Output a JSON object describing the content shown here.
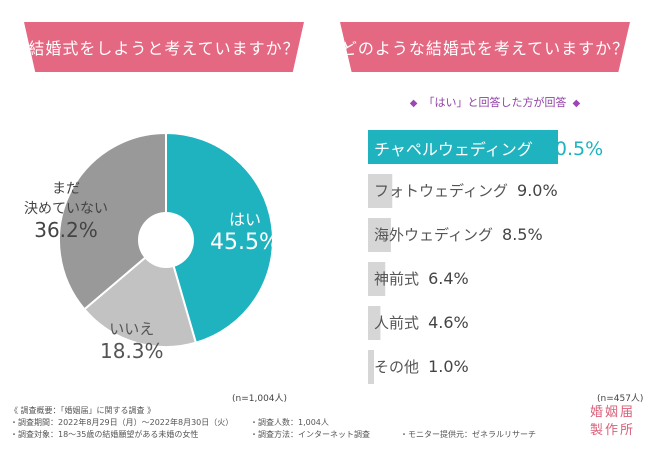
{
  "left_title": "結婚式をしようと考えていますか？",
  "right_title": "どのような結婚式を考えていますか？",
  "right_subtitle": "「はい」と回答した方が回答",
  "subtitle_diamond": "◆",
  "left_n": "(n=1,004人)",
  "right_n": "(n=457人)",
  "chart_data": [
    {
      "type": "pie",
      "categories": [
        "はい",
        "いいえ",
        "まだ決めていない"
      ],
      "values": [
        45.5,
        18.3,
        36.2
      ],
      "labels": {
        "yes": {
          "text": "はい",
          "value": "45.5%"
        },
        "no": {
          "text": "いいえ",
          "value": "18.3%"
        },
        "undecided": {
          "line1": "まだ",
          "line2": "決めていない",
          "value": "36.2%"
        }
      }
    },
    {
      "type": "bar",
      "categories": [
        "チャペルウェディング",
        "フォトウェディング",
        "海外ウェディング",
        "神前式",
        "人前式",
        "その他"
      ],
      "values": [
        70.5,
        9.0,
        8.5,
        6.4,
        4.6,
        1.0
      ],
      "value_labels": [
        "70.5%",
        "9.0%",
        "8.5%",
        "6.4%",
        "4.6%",
        "1.0%"
      ],
      "orientation": "horizontal"
    }
  ],
  "colors": {
    "pink": "#e46882",
    "teal": "#1eb3bf",
    "pie_teal": "#1eb3bf",
    "pie_light": "#c2c2c2",
    "pie_gray": "#999999",
    "bar_gray": "#d6d6d6",
    "purple": "#8f3fa5"
  },
  "footer": {
    "line1": "《 調査概要：「婚姻届」に関する調査 》",
    "line2": "・調査期間：2022年8月29日（月）〜2022年8月30日（火）",
    "line3": "・調査対象：18〜35歳の結婚願望がある未婚の女性",
    "line2b": "・調査人数：1,004人",
    "line3b": "・調査方法：インターネット調査",
    "line3c": "・モニター提供元：ゼネラルリサーチ"
  },
  "logo": {
    "line1": "婚姻届",
    "line2": "製作所"
  }
}
